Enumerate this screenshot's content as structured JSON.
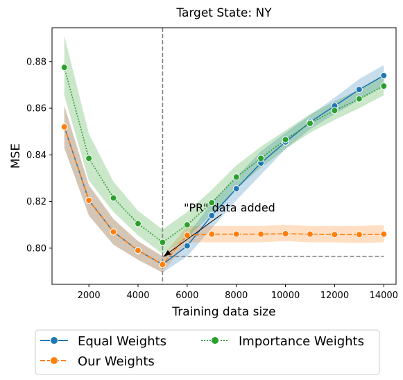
{
  "chart_data": {
    "type": "line",
    "title": "Target State: NY",
    "xlabel": "Training data size",
    "ylabel": "MSE",
    "xlim": [
      500,
      14500
    ],
    "ylim": [
      0.7845,
      0.8945
    ],
    "x_ticks": [
      2000,
      4000,
      6000,
      8000,
      10000,
      12000,
      14000
    ],
    "y_ticks": [
      0.8,
      0.82,
      0.84,
      0.86,
      0.88
    ],
    "x_tick_labels": [
      "2000",
      "4000",
      "6000",
      "8000",
      "10000",
      "12000",
      "14000"
    ],
    "y_tick_labels": [
      "0.80",
      "0.82",
      "0.84",
      "0.86",
      "0.88"
    ],
    "grid": false,
    "legend_position": "below",
    "annotation": {
      "text": "\"PR\" data added",
      "x_from": 7400,
      "y_from": 0.8145,
      "x_to": 5050,
      "y_to": 0.7965
    },
    "vline_x": 5000,
    "hline": {
      "y": 0.7965,
      "x_start": 5000,
      "x_end": 14000
    },
    "x": [
      1000,
      2000,
      3000,
      4000,
      5000,
      6000,
      7000,
      8000,
      9000,
      10000,
      11000,
      12000,
      13000,
      14000
    ],
    "series": [
      {
        "name": "Equal Weights",
        "color": "#1f77b4",
        "dash": "solid",
        "values": [
          0.852,
          0.8205,
          0.807,
          0.799,
          0.793,
          0.801,
          0.814,
          0.8255,
          0.8365,
          0.8455,
          0.854,
          0.861,
          0.868,
          0.874
        ],
        "lower": [
          0.843,
          0.814,
          0.8015,
          0.795,
          0.7895,
          0.7965,
          0.8085,
          0.8205,
          0.8315,
          0.8425,
          0.851,
          0.8575,
          0.8635,
          0.8695
        ],
        "upper": [
          0.861,
          0.827,
          0.8125,
          0.803,
          0.7965,
          0.8055,
          0.8195,
          0.8305,
          0.8415,
          0.8495,
          0.857,
          0.8645,
          0.8725,
          0.8785
        ]
      },
      {
        "name": "Our Weights",
        "color": "#ff7f0e",
        "dash": "dashed",
        "values": [
          0.852,
          0.8205,
          0.807,
          0.799,
          0.793,
          0.8055,
          0.806,
          0.806,
          0.806,
          0.8062,
          0.806,
          0.8058,
          0.8058,
          0.806
        ],
        "lower": [
          0.843,
          0.814,
          0.8015,
          0.795,
          0.7895,
          0.8025,
          0.8025,
          0.8025,
          0.8025,
          0.803,
          0.8025,
          0.8025,
          0.8022,
          0.8025
        ],
        "upper": [
          0.861,
          0.827,
          0.8125,
          0.803,
          0.7965,
          0.8095,
          0.8095,
          0.8095,
          0.8095,
          0.81,
          0.8095,
          0.8095,
          0.8095,
          0.81
        ]
      },
      {
        "name": "Importance Weights",
        "color": "#2ca02c",
        "dash": "dotted",
        "values": [
          0.8775,
          0.8385,
          0.8215,
          0.8105,
          0.8025,
          0.81,
          0.8195,
          0.8305,
          0.8385,
          0.8465,
          0.8535,
          0.859,
          0.864,
          0.8695
        ],
        "lower": [
          0.8655,
          0.829,
          0.8155,
          0.8055,
          0.7975,
          0.8045,
          0.8145,
          0.8255,
          0.8345,
          0.8425,
          0.8495,
          0.855,
          0.86,
          0.8655
        ],
        "upper": [
          0.891,
          0.849,
          0.8285,
          0.816,
          0.808,
          0.8155,
          0.825,
          0.8355,
          0.8435,
          0.8505,
          0.8575,
          0.863,
          0.868,
          0.8745
        ]
      }
    ]
  }
}
